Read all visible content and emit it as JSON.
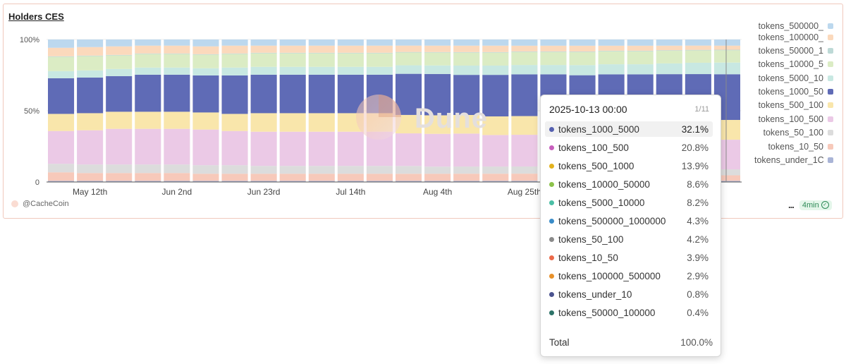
{
  "card": {
    "title": "Holders CES",
    "credit": "@CacheCoin",
    "watermark": "Dune",
    "menu_label": "...",
    "refresh_label": "4min"
  },
  "chart_data": {
    "type": "bar",
    "stacked": true,
    "percent": true,
    "ylim": [
      0,
      100
    ],
    "y_ticks": [
      "0",
      "50%",
      "100%"
    ],
    "x_tick_labels": [
      "May 12th",
      "Jun 2nd",
      "Jun 23rd",
      "Jul 14th",
      "Aug 4th",
      "Aug 25th"
    ],
    "categories": [
      "2025-05-05",
      "2025-05-12",
      "2025-05-19",
      "2025-05-26",
      "2025-06-02",
      "2025-06-09",
      "2025-06-16",
      "2025-06-23",
      "2025-06-30",
      "2025-07-07",
      "2025-07-14",
      "2025-07-21",
      "2025-07-28",
      "2025-08-04",
      "2025-08-11",
      "2025-08-18",
      "2025-08-25",
      "2025-09-01",
      "2025-09-08",
      "2025-09-15",
      "2025-09-22",
      "2025-09-29",
      "2025-10-06",
      "2025-10-13"
    ],
    "series": [
      {
        "name": "tokens_under_10",
        "color": "#a9b4d6",
        "values": [
          0.8,
          0.8,
          0.8,
          0.8,
          0.8,
          0.8,
          0.8,
          0.8,
          0.8,
          0.8,
          0.8,
          0.8,
          0.8,
          0.8,
          0.8,
          0.8,
          0.8,
          0.8,
          0.8,
          0.8,
          0.8,
          0.8,
          0.8,
          0.8
        ]
      },
      {
        "name": "tokens_10_50",
        "color": "#f7c9ba",
        "values": [
          6,
          5.5,
          5.5,
          5.5,
          5.5,
          5,
          5,
          5,
          5,
          5,
          5,
          5,
          5,
          5,
          5,
          5,
          5,
          5,
          4.5,
          4.5,
          4.5,
          4.2,
          4,
          3.9
        ]
      },
      {
        "name": "tokens_50_100",
        "color": "#dcdcdc",
        "values": [
          6,
          6,
          6,
          6,
          6,
          6,
          6,
          5.5,
          5.5,
          5.5,
          5.5,
          5.5,
          5.5,
          5,
          5,
          5,
          5,
          5,
          4.5,
          4.5,
          4.5,
          4.3,
          4.3,
          4.2
        ]
      },
      {
        "name": "tokens_100_500",
        "color": "#ebc9e6",
        "values": [
          23,
          24,
          25,
          25,
          25,
          25,
          24,
          24,
          24,
          24,
          24,
          24,
          23,
          23,
          23,
          22,
          22,
          22,
          22,
          21,
          21,
          21,
          21,
          20.8
        ]
      },
      {
        "name": "tokens_500_1000",
        "color": "#f9e6ab",
        "values": [
          12,
          12,
          12,
          12,
          12,
          12,
          12,
          13,
          13,
          13,
          13,
          13,
          13,
          13,
          13,
          13,
          13,
          13,
          13,
          14,
          14,
          14,
          14,
          13.9
        ]
      },
      {
        "name": "tokens_1000_5000",
        "color": "#5f6bb6",
        "values": [
          25,
          25,
          25,
          26,
          26,
          26,
          27,
          27,
          27,
          27,
          27,
          27,
          29,
          29,
          28,
          29,
          29,
          29,
          29,
          30,
          30,
          31,
          32,
          32.1
        ]
      },
      {
        "name": "tokens_5000_10000",
        "color": "#c8e8e2",
        "values": [
          5,
          5,
          5,
          5,
          5,
          5,
          5.5,
          5.5,
          5.5,
          5.5,
          5.5,
          5.5,
          6,
          6,
          6.5,
          6.5,
          6.5,
          6.5,
          7,
          7,
          7,
          7.5,
          8,
          8.2
        ]
      },
      {
        "name": "tokens_10000_50000",
        "color": "#dbecc4",
        "values": [
          10,
          10,
          9.5,
          9.5,
          9.5,
          9.5,
          9.5,
          9.5,
          9.5,
          9.5,
          9.5,
          9.5,
          9,
          9,
          9,
          9,
          9,
          9,
          9,
          9,
          9,
          8.8,
          8.7,
          8.6
        ]
      },
      {
        "name": "tokens_50000_100000",
        "color": "#bdd9d6",
        "values": [
          0.4,
          0.4,
          0.4,
          0.4,
          0.4,
          0.4,
          0.4,
          0.4,
          0.4,
          0.4,
          0.4,
          0.4,
          0.4,
          0.4,
          0.4,
          0.4,
          0.4,
          0.4,
          0.4,
          0.4,
          0.4,
          0.4,
          0.4,
          0.4
        ]
      },
      {
        "name": "tokens_100000_500000",
        "color": "#fbd9bc",
        "values": [
          6,
          6,
          6,
          5.5,
          5.5,
          5.5,
          5.5,
          5,
          5,
          5,
          5,
          5,
          4.5,
          4.5,
          4.5,
          4.5,
          4,
          4,
          4,
          3.5,
          3.5,
          3.2,
          3,
          2.9
        ]
      },
      {
        "name": "tokens_500000_1000000",
        "color": "#bcd8ee",
        "values": [
          5.8,
          5.3,
          4.8,
          4.3,
          4.3,
          4.8,
          4.3,
          4.3,
          4.3,
          4.3,
          4.3,
          4.3,
          4.3,
          4.3,
          4.3,
          4.3,
          4.3,
          4.3,
          4.3,
          4.3,
          4.3,
          4.3,
          4.3,
          4.3
        ]
      }
    ]
  },
  "legend": {
    "items": [
      {
        "label": "tokens_500000_",
        "color": "#bcd8ee"
      },
      {
        "label": "tokens_100000_",
        "color": "#fbd9bc"
      },
      {
        "label": "tokens_50000_1",
        "color": "#bdd9d6"
      },
      {
        "label": "tokens_10000_5",
        "color": "#dbecc4"
      },
      {
        "label": "tokens_5000_10",
        "color": "#c8e8e2"
      },
      {
        "label": "tokens_1000_50",
        "color": "#5f6bb6"
      },
      {
        "label": "tokens_500_100",
        "color": "#f9e6ab"
      },
      {
        "label": "tokens_100_500",
        "color": "#ebc9e6"
      },
      {
        "label": "tokens_50_100",
        "color": "#dcdcdc"
      },
      {
        "label": "tokens_10_50",
        "color": "#f7c9ba"
      },
      {
        "label": "tokens_under_1C",
        "color": "#a9b4d6"
      }
    ]
  },
  "tooltip": {
    "date": "2025-10-13 00:00",
    "page": "1/11",
    "rows": [
      {
        "label": "tokens_1000_5000",
        "value": "32.1%",
        "color": "#5560b0"
      },
      {
        "label": "tokens_100_500",
        "value": "20.8%",
        "color": "#c75fbd"
      },
      {
        "label": "tokens_500_1000",
        "value": "13.9%",
        "color": "#e3b21d"
      },
      {
        "label": "tokens_10000_50000",
        "value": "8.6%",
        "color": "#8cc24a"
      },
      {
        "label": "tokens_5000_10000",
        "value": "8.2%",
        "color": "#4bbfa6"
      },
      {
        "label": "tokens_500000_1000000",
        "value": "4.3%",
        "color": "#3a8cc8"
      },
      {
        "label": "tokens_50_100",
        "value": "4.2%",
        "color": "#8a8a8a"
      },
      {
        "label": "tokens_10_50",
        "value": "3.9%",
        "color": "#ec6a4a"
      },
      {
        "label": "tokens_100000_500000",
        "value": "2.9%",
        "color": "#e8912a"
      },
      {
        "label": "tokens_under_10",
        "value": "0.8%",
        "color": "#4b538f"
      },
      {
        "label": "tokens_50000_100000",
        "value": "0.4%",
        "color": "#2d7368"
      }
    ],
    "total_label": "Total",
    "total_value": "100.0%"
  }
}
